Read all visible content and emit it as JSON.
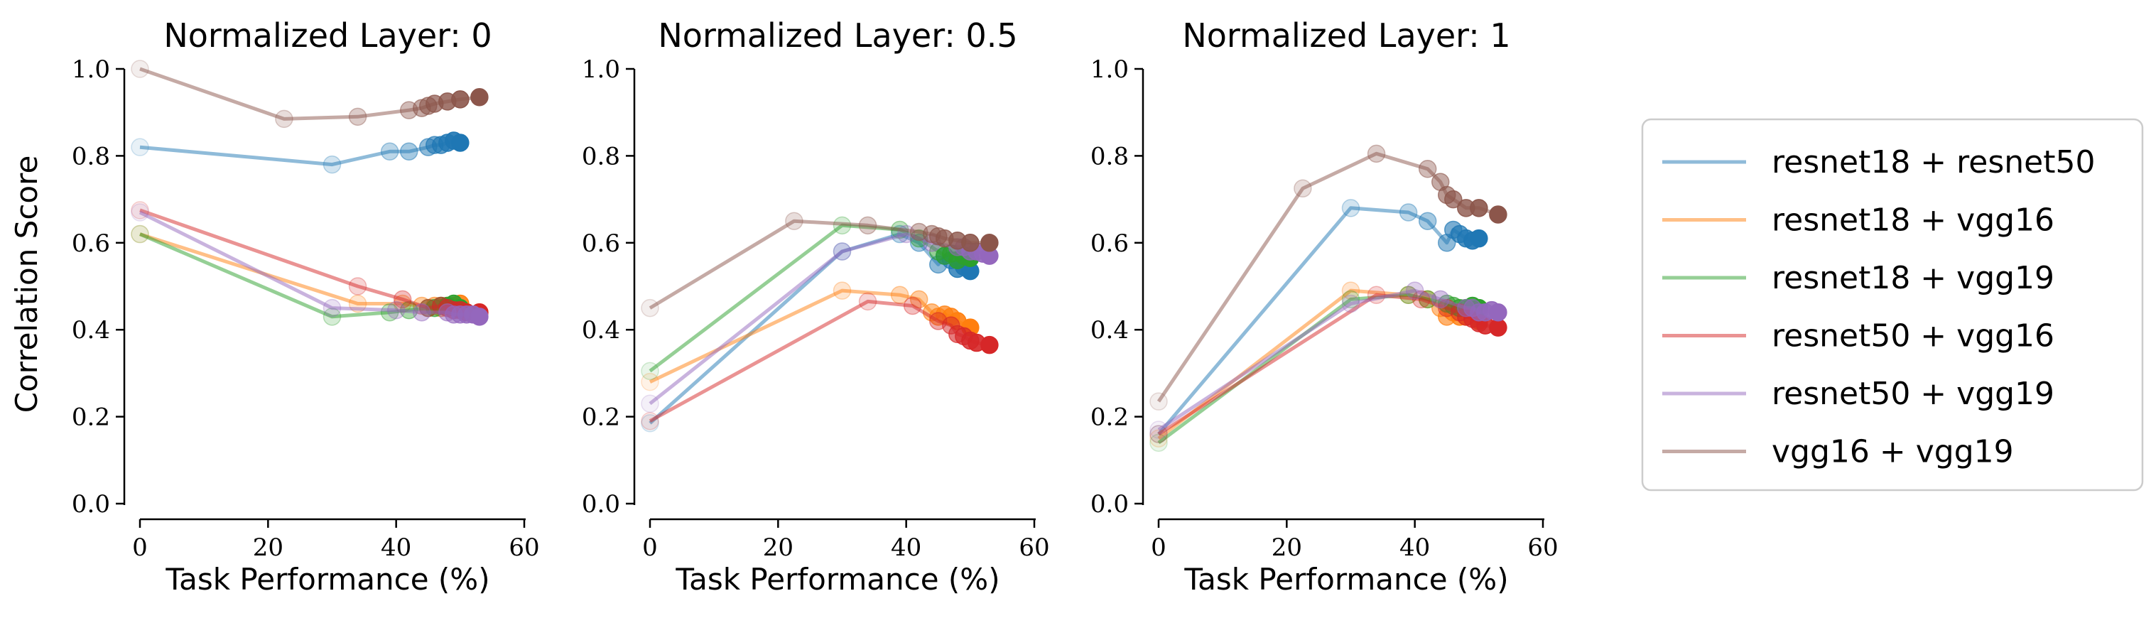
{
  "figure": {
    "ylabel": "Correlation Score",
    "xlabel": "Task Performance (%)"
  },
  "legend": {
    "placement": "right",
    "entries": [
      {
        "label": "resnet18 + resnet50",
        "color": "#1f77b4"
      },
      {
        "label": "resnet18 + vgg16",
        "color": "#ff7f0e"
      },
      {
        "label": "resnet18 + vgg19",
        "color": "#2ca02c"
      },
      {
        "label": "resnet50 + vgg16",
        "color": "#d62728"
      },
      {
        "label": "resnet50 + vgg19",
        "color": "#9467bd"
      },
      {
        "label": "vgg16 + vgg19",
        "color": "#8c564b"
      }
    ]
  },
  "chart_data": [
    {
      "type": "line",
      "title": "Normalized Layer: 0",
      "xlabel": "Task Performance (%)",
      "ylabel": "Correlation Score",
      "xlim": [
        0,
        60
      ],
      "ylim": [
        0,
        1
      ],
      "xticks": [
        "0",
        "20",
        "40",
        "60"
      ],
      "yticks": [
        "0.0",
        "0.2",
        "0.4",
        "0.6",
        "0.8",
        "1.0"
      ],
      "grid": false,
      "series": [
        {
          "name": "resnet18 + resnet50",
          "color": "#1f77b4",
          "x": [
            0,
            30,
            39,
            42,
            45,
            46,
            47,
            48,
            49,
            50
          ],
          "y": [
            0.82,
            0.78,
            0.81,
            0.81,
            0.82,
            0.825,
            0.825,
            0.83,
            0.835,
            0.83
          ]
        },
        {
          "name": "resnet18 + vgg16",
          "color": "#ff7f0e",
          "x": [
            0,
            34,
            41,
            44,
            46,
            47,
            48,
            49,
            50,
            53
          ],
          "y": [
            0.62,
            0.46,
            0.46,
            0.455,
            0.455,
            0.45,
            0.455,
            0.455,
            0.46,
            0.44
          ]
        },
        {
          "name": "resnet18 + vgg19",
          "color": "#2ca02c",
          "x": [
            0,
            30,
            39,
            42,
            45,
            46,
            47,
            48,
            49,
            50
          ],
          "y": [
            0.62,
            0.43,
            0.44,
            0.445,
            0.45,
            0.45,
            0.455,
            0.455,
            0.46,
            0.45
          ]
        },
        {
          "name": "resnet50 + vgg16",
          "color": "#d62728",
          "x": [
            0,
            34,
            41,
            45,
            47,
            48,
            49,
            50,
            51,
            53
          ],
          "y": [
            0.675,
            0.5,
            0.47,
            0.45,
            0.455,
            0.45,
            0.445,
            0.445,
            0.44,
            0.44
          ]
        },
        {
          "name": "resnet50 + vgg19",
          "color": "#9467bd",
          "x": [
            0,
            30,
            40,
            44,
            48,
            49,
            50,
            51,
            52,
            53
          ],
          "y": [
            0.67,
            0.45,
            0.445,
            0.44,
            0.44,
            0.435,
            0.435,
            0.435,
            0.435,
            0.43
          ]
        },
        {
          "name": "vgg16 + vgg19",
          "color": "#8c564b",
          "x": [
            0,
            22.5,
            34,
            42,
            44,
            45,
            46,
            48,
            50,
            53
          ],
          "y": [
            1.0,
            0.885,
            0.89,
            0.905,
            0.91,
            0.915,
            0.92,
            0.925,
            0.93,
            0.935
          ]
        }
      ]
    },
    {
      "type": "line",
      "title": "Normalized Layer: 0.5",
      "xlabel": "Task Performance (%)",
      "ylabel": "",
      "xlim": [
        0,
        60
      ],
      "ylim": [
        0,
        1
      ],
      "xticks": [
        "0",
        "20",
        "40",
        "60"
      ],
      "yticks": [
        "0.0",
        "0.2",
        "0.4",
        "0.6",
        "0.8",
        "1.0"
      ],
      "grid": false,
      "series": [
        {
          "name": "resnet18 + resnet50",
          "color": "#1f77b4",
          "x": [
            0,
            30,
            39,
            42,
            45,
            46,
            47,
            48,
            49,
            50
          ],
          "y": [
            0.185,
            0.58,
            0.62,
            0.6,
            0.55,
            0.57,
            0.56,
            0.54,
            0.545,
            0.535
          ]
        },
        {
          "name": "resnet18 + vgg16",
          "color": "#ff7f0e",
          "x": [
            0,
            30,
            39,
            42,
            44,
            45,
            46,
            47,
            48,
            50
          ],
          "y": [
            0.28,
            0.49,
            0.48,
            0.47,
            0.44,
            0.43,
            0.435,
            0.43,
            0.42,
            0.405
          ]
        },
        {
          "name": "resnet18 + vgg19",
          "color": "#2ca02c",
          "x": [
            0,
            30,
            39,
            42,
            45,
            46,
            47,
            48,
            49,
            50
          ],
          "y": [
            0.305,
            0.64,
            0.63,
            0.61,
            0.58,
            0.57,
            0.575,
            0.56,
            0.57,
            0.565
          ]
        },
        {
          "name": "resnet50 + vgg16",
          "color": "#d62728",
          "x": [
            0,
            34,
            41,
            45,
            47,
            48,
            49,
            50,
            51,
            53
          ],
          "y": [
            0.19,
            0.465,
            0.455,
            0.42,
            0.41,
            0.39,
            0.385,
            0.375,
            0.37,
            0.365
          ]
        },
        {
          "name": "resnet50 + vgg19",
          "color": "#9467bd",
          "x": [
            0,
            30,
            40,
            44,
            48,
            49,
            50,
            51,
            52,
            53
          ],
          "y": [
            0.23,
            0.58,
            0.62,
            0.6,
            0.59,
            0.59,
            0.58,
            0.58,
            0.575,
            0.57
          ]
        },
        {
          "name": "vgg16 + vgg19",
          "color": "#8c564b",
          "x": [
            0,
            22.5,
            34,
            42,
            44,
            45,
            46,
            48,
            50,
            53
          ],
          "y": [
            0.45,
            0.65,
            0.64,
            0.625,
            0.62,
            0.615,
            0.61,
            0.605,
            0.6,
            0.6
          ]
        }
      ]
    },
    {
      "type": "line",
      "title": "Normalized Layer: 1",
      "xlabel": "Task Performance (%)",
      "ylabel": "",
      "xlim": [
        0,
        60
      ],
      "ylim": [
        0,
        1
      ],
      "xticks": [
        "0",
        "20",
        "40",
        "60"
      ],
      "yticks": [
        "0.0",
        "0.2",
        "0.4",
        "0.6",
        "0.8",
        "1.0"
      ],
      "grid": false,
      "series": [
        {
          "name": "resnet18 + resnet50",
          "color": "#1f77b4",
          "x": [
            0,
            30,
            39,
            42,
            45,
            46,
            47,
            48,
            49,
            50
          ],
          "y": [
            0.16,
            0.68,
            0.67,
            0.65,
            0.6,
            0.63,
            0.62,
            0.61,
            0.605,
            0.61
          ]
        },
        {
          "name": "resnet18 + vgg16",
          "color": "#ff7f0e",
          "x": [
            0,
            30,
            39,
            42,
            44,
            45,
            46,
            47,
            48,
            50
          ],
          "y": [
            0.15,
            0.49,
            0.48,
            0.47,
            0.45,
            0.43,
            0.44,
            0.43,
            0.43,
            0.42
          ]
        },
        {
          "name": "resnet18 + vgg19",
          "color": "#2ca02c",
          "x": [
            0,
            30,
            39,
            42,
            45,
            46,
            47,
            48,
            49,
            50
          ],
          "y": [
            0.14,
            0.47,
            0.48,
            0.47,
            0.46,
            0.455,
            0.45,
            0.45,
            0.455,
            0.45
          ]
        },
        {
          "name": "resnet50 + vgg16",
          "color": "#d62728",
          "x": [
            0,
            34,
            41,
            45,
            47,
            48,
            49,
            50,
            51,
            53
          ],
          "y": [
            0.16,
            0.48,
            0.47,
            0.45,
            0.44,
            0.43,
            0.425,
            0.415,
            0.41,
            0.405
          ]
        },
        {
          "name": "resnet50 + vgg19",
          "color": "#9467bd",
          "x": [
            0,
            30,
            40,
            44,
            48,
            49,
            50,
            51,
            52,
            53
          ],
          "y": [
            0.17,
            0.46,
            0.49,
            0.47,
            0.45,
            0.45,
            0.44,
            0.44,
            0.445,
            0.44
          ]
        },
        {
          "name": "vgg16 + vgg19",
          "color": "#8c564b",
          "x": [
            0,
            22.5,
            34,
            42,
            44,
            45,
            46,
            48,
            50,
            53
          ],
          "y": [
            0.235,
            0.725,
            0.805,
            0.77,
            0.74,
            0.71,
            0.7,
            0.68,
            0.68,
            0.665
          ]
        }
      ]
    }
  ]
}
